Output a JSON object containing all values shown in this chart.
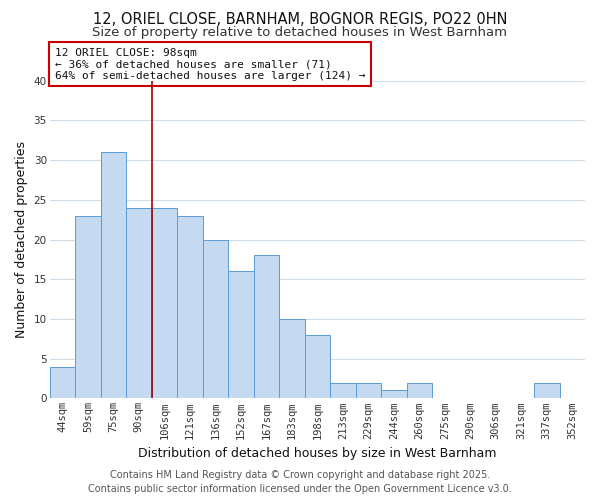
{
  "title": "12, ORIEL CLOSE, BARNHAM, BOGNOR REGIS, PO22 0HN",
  "subtitle": "Size of property relative to detached houses in West Barnham",
  "xlabel": "Distribution of detached houses by size in West Barnham",
  "ylabel": "Number of detached properties",
  "categories": [
    "44sqm",
    "59sqm",
    "75sqm",
    "90sqm",
    "106sqm",
    "121sqm",
    "136sqm",
    "152sqm",
    "167sqm",
    "183sqm",
    "198sqm",
    "213sqm",
    "229sqm",
    "244sqm",
    "260sqm",
    "275sqm",
    "290sqm",
    "306sqm",
    "321sqm",
    "337sqm",
    "352sqm"
  ],
  "values": [
    4,
    23,
    31,
    24,
    24,
    23,
    20,
    16,
    18,
    10,
    8,
    2,
    2,
    1,
    2,
    0,
    0,
    0,
    0,
    2,
    0
  ],
  "bar_color": "#c5d9f0",
  "bar_edge_color": "#5b9bd5",
  "background_color": "#ffffff",
  "grid_color": "#d0dce8",
  "ylim": [
    0,
    40
  ],
  "yticks": [
    0,
    5,
    10,
    15,
    20,
    25,
    30,
    35,
    40
  ],
  "vline_x_index": 3.5,
  "vline_color": "#aa0000",
  "annotation_title": "12 ORIEL CLOSE: 98sqm",
  "annotation_line1": "← 36% of detached houses are smaller (71)",
  "annotation_line2": "64% of semi-detached houses are larger (124) →",
  "annotation_box_facecolor": "#ffffff",
  "annotation_box_edgecolor": "#cc0000",
  "footer_line1": "Contains HM Land Registry data © Crown copyright and database right 2025.",
  "footer_line2": "Contains public sector information licensed under the Open Government Licence v3.0.",
  "title_fontsize": 10.5,
  "subtitle_fontsize": 9.5,
  "axis_label_fontsize": 9,
  "tick_fontsize": 7.5,
  "annotation_fontsize": 8,
  "footer_fontsize": 7
}
